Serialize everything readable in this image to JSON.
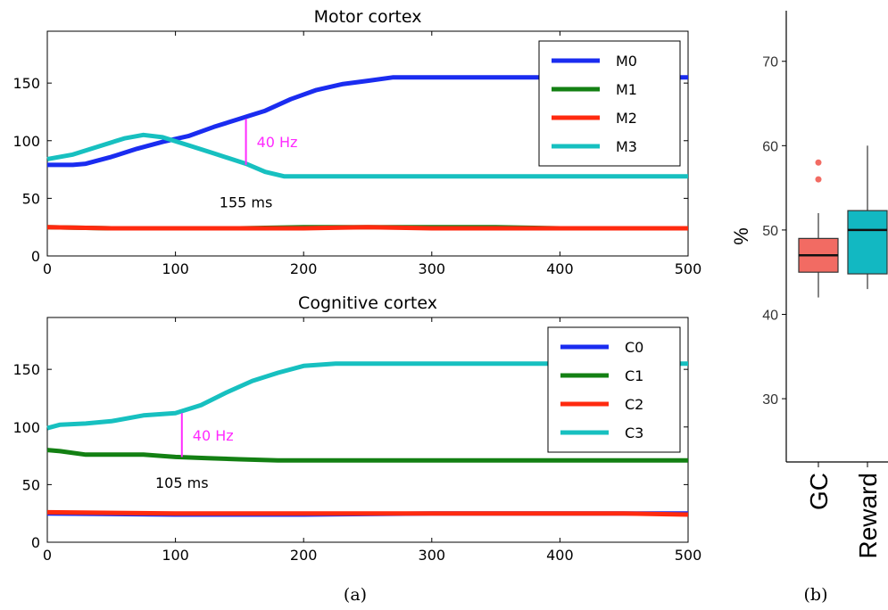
{
  "chart_data": [
    {
      "type": "line",
      "title": "Motor cortex",
      "xlim": [
        0,
        500
      ],
      "ylim": [
        0,
        195
      ],
      "xticks": [
        "0",
        "100",
        "200",
        "300",
        "400",
        "500"
      ],
      "yticks": [
        "0",
        "50",
        "100",
        "150"
      ],
      "legend_position": "top-right",
      "series": [
        {
          "name": "M0",
          "color": "#1a2cf0",
          "x": [
            0,
            20,
            30,
            50,
            70,
            90,
            110,
            130,
            150,
            170,
            190,
            210,
            230,
            250,
            270,
            300,
            400,
            500
          ],
          "y": [
            79,
            79,
            80,
            86,
            93,
            99,
            104,
            112,
            119,
            126,
            136,
            144,
            149,
            152,
            155,
            155,
            155,
            155
          ]
        },
        {
          "name": "M1",
          "color": "#138013",
          "x": [
            0,
            50,
            100,
            150,
            200,
            250,
            300,
            350,
            400,
            450,
            500
          ],
          "y": [
            25,
            24,
            24,
            24,
            25,
            25,
            25,
            25,
            24,
            24,
            24
          ]
        },
        {
          "name": "M2",
          "color": "#ff2a0f",
          "x": [
            0,
            50,
            100,
            150,
            200,
            250,
            300,
            350,
            400,
            450,
            500
          ],
          "y": [
            25,
            24,
            24,
            24,
            24,
            25,
            24,
            24,
            24,
            24,
            24
          ]
        },
        {
          "name": "M3",
          "color": "#17c0c0",
          "x": [
            0,
            20,
            40,
            60,
            75,
            90,
            110,
            130,
            155,
            170,
            185,
            200,
            300,
            400,
            500
          ],
          "y": [
            84,
            88,
            95,
            102,
            105,
            103,
            96,
            89,
            80,
            73,
            69,
            69,
            69,
            69,
            69
          ]
        }
      ],
      "annotations": [
        {
          "text": "40 Hz",
          "x": 155,
          "y_from": 79,
          "y_to": 119,
          "color": "#ff2aff"
        },
        {
          "text": "155 ms",
          "x": 155,
          "y": 47,
          "color": "#000000"
        }
      ]
    },
    {
      "type": "line",
      "title": "Cognitive cortex",
      "xlim": [
        0,
        500
      ],
      "ylim": [
        0,
        195
      ],
      "xticks": [
        "0",
        "100",
        "200",
        "300",
        "400",
        "500"
      ],
      "yticks": [
        "0",
        "50",
        "100",
        "150"
      ],
      "legend_position": "top-right",
      "series": [
        {
          "name": "C0",
          "color": "#1a2cf0",
          "x": [
            0,
            100,
            200,
            300,
            400,
            500
          ],
          "y": [
            25,
            24,
            24,
            25,
            25,
            25
          ]
        },
        {
          "name": "C1",
          "color": "#138013",
          "x": [
            0,
            10,
            30,
            50,
            75,
            100,
            125,
            150,
            180,
            200,
            300,
            400,
            500
          ],
          "y": [
            80,
            79,
            76,
            76,
            76,
            74,
            73,
            72,
            71,
            71,
            71,
            71,
            71
          ]
        },
        {
          "name": "C2",
          "color": "#ff2a0f",
          "x": [
            0,
            100,
            200,
            300,
            400,
            450,
            500
          ],
          "y": [
            26,
            25,
            25,
            25,
            25,
            25,
            24
          ]
        },
        {
          "name": "C3",
          "color": "#17c0c0",
          "x": [
            0,
            10,
            30,
            50,
            75,
            100,
            120,
            140,
            160,
            180,
            200,
            225,
            300,
            400,
            500
          ],
          "y": [
            99,
            102,
            103,
            105,
            110,
            112,
            119,
            130,
            140,
            147,
            153,
            155,
            155,
            155,
            155
          ]
        }
      ],
      "annotations": [
        {
          "text": "40 Hz",
          "x": 105,
          "y_from": 74,
          "y_to": 112,
          "color": "#ff2aff"
        },
        {
          "text": "105 ms",
          "x": 105,
          "y": 52,
          "color": "#000000"
        }
      ]
    },
    {
      "type": "box",
      "ylabel": "%",
      "ylim": [
        22.5,
        76
      ],
      "yticks": [
        "30",
        "40",
        "50",
        "60",
        "70"
      ],
      "categories": [
        "GC",
        "Reward"
      ],
      "boxes": [
        {
          "name": "GC",
          "color": "#f26b63",
          "whisker_low": 42,
          "q1": 45,
          "median": 47,
          "q3": 49,
          "whisker_high": 52,
          "outliers": [
            56,
            58
          ]
        },
        {
          "name": "Reward",
          "color": "#12b8c2",
          "whisker_low": 43,
          "q1": 44.8,
          "median": 50,
          "q3": 52.3,
          "whisker_high": 60,
          "outliers": []
        }
      ]
    }
  ],
  "captions": {
    "a": "(a)",
    "b": "(b)"
  }
}
